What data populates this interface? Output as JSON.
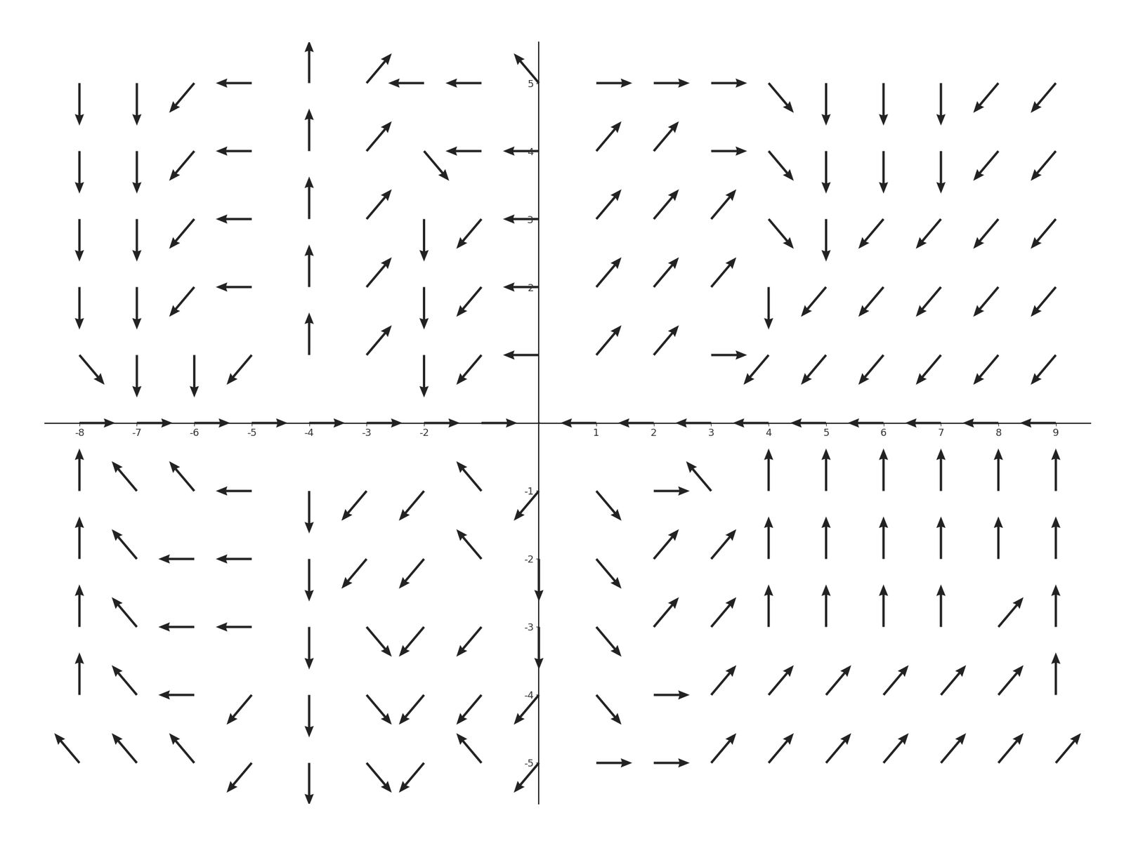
{
  "chart_data": {
    "type": "quiver",
    "color": "#222222",
    "grid": false,
    "x": [
      -8,
      -7,
      -6,
      -5,
      -4,
      -3,
      -2,
      -1,
      0,
      1,
      2,
      3,
      4,
      5,
      6,
      7,
      8,
      9
    ],
    "y": [
      5,
      4,
      3,
      2,
      1,
      0,
      -1,
      -2,
      -3,
      -4,
      -5
    ],
    "u": [
      [
        0,
        0,
        -0.7,
        -1,
        0,
        0.7,
        -1,
        -1,
        -0.7,
        1,
        1,
        1,
        0.7,
        0,
        0,
        0,
        -0.7,
        -0.7
      ],
      [
        0,
        0,
        -0.7,
        -1,
        0,
        0.7,
        0.7,
        -1,
        -1,
        0.7,
        0.7,
        1,
        0.7,
        0,
        0,
        0,
        -0.7,
        -0.7
      ],
      [
        0,
        0,
        -0.7,
        -1,
        0,
        0.7,
        0,
        -0.7,
        -1,
        0.7,
        0.7,
        0.7,
        0.7,
        0,
        -0.7,
        -0.7,
        -0.7,
        -0.7
      ],
      [
        0,
        0,
        -0.7,
        -1,
        0,
        0.7,
        0,
        -0.7,
        -1,
        0.7,
        0.7,
        0.7,
        0,
        -0.7,
        -0.7,
        -0.7,
        -0.7,
        -0.7
      ],
      [
        0.7,
        0,
        0,
        -0.7,
        0,
        0.7,
        0,
        -0.7,
        -1,
        0.7,
        0.7,
        1,
        -0.7,
        -0.7,
        -0.7,
        -0.7,
        -0.7,
        -0.7
      ],
      [
        1,
        1,
        1,
        1,
        1,
        1,
        1,
        1,
        0,
        -1,
        -1,
        -1,
        -1,
        -1,
        -1,
        -1,
        -1,
        -1
      ],
      [
        0,
        -0.7,
        -0.7,
        -1,
        0,
        -0.7,
        -0.7,
        -0.7,
        -0.7,
        0.7,
        1,
        -0.7,
        0,
        0,
        0,
        0,
        0,
        0
      ],
      [
        0,
        -0.7,
        -1,
        -1,
        0,
        -0.7,
        -0.7,
        -0.7,
        0,
        0.7,
        0.7,
        0.7,
        0,
        0,
        0,
        0,
        0,
        0
      ],
      [
        0,
        -0.7,
        -1,
        -1,
        0,
        0.7,
        -0.7,
        -0.7,
        0,
        0.7,
        0.7,
        0.7,
        0,
        0,
        0,
        0,
        0.7,
        0
      ],
      [
        0,
        -0.7,
        -1,
        -0.7,
        0,
        0.7,
        -0.7,
        -0.7,
        -0.7,
        0.7,
        1,
        0.7,
        0.7,
        0.7,
        0.7,
        0.7,
        0.7,
        0
      ],
      [
        -0.7,
        -0.7,
        -0.7,
        -0.7,
        0,
        0.7,
        -0.7,
        -0.7,
        -0.7,
        1,
        1,
        0.7,
        0.7,
        0.7,
        0.7,
        0.7,
        0.7,
        0.7
      ]
    ],
    "v": [
      [
        -1,
        -1,
        -0.7,
        0,
        1,
        0.7,
        0,
        0,
        0.7,
        0,
        0,
        0,
        -0.7,
        -1,
        -1,
        -1,
        -0.7,
        -0.7
      ],
      [
        -1,
        -1,
        -0.7,
        0,
        1,
        0.7,
        -0.7,
        0,
        0,
        0.7,
        0.7,
        0,
        -0.7,
        -1,
        -1,
        -1,
        -0.7,
        -0.7
      ],
      [
        -1,
        -1,
        -0.7,
        0,
        1,
        0.7,
        -1,
        -0.7,
        0,
        0.7,
        0.7,
        0.7,
        -0.7,
        -1,
        -0.7,
        -0.7,
        -0.7,
        -0.7
      ],
      [
        -1,
        -1,
        -0.7,
        0,
        1,
        0.7,
        -1,
        -0.7,
        0,
        0.7,
        0.7,
        0.7,
        -1,
        -0.7,
        -0.7,
        -0.7,
        -0.7,
        -0.7
      ],
      [
        -0.7,
        -1,
        -1,
        -0.7,
        1,
        0.7,
        -1,
        -0.7,
        0,
        0.7,
        0.7,
        0,
        -0.7,
        -0.7,
        -0.7,
        -0.7,
        -0.7,
        -0.7
      ],
      [
        0,
        0,
        0,
        0,
        0,
        0,
        0,
        0,
        0,
        0,
        0,
        0,
        0,
        0,
        0,
        0,
        0,
        0
      ],
      [
        1,
        0.7,
        0.7,
        0,
        -1,
        -0.7,
        -0.7,
        0.7,
        -0.7,
        -0.7,
        0,
        0.7,
        1,
        1,
        1,
        1,
        1,
        1
      ],
      [
        1,
        0.7,
        0,
        0,
        -1,
        -0.7,
        -0.7,
        0.7,
        -1,
        -0.7,
        0.7,
        0.7,
        1,
        1,
        1,
        1,
        1,
        1
      ],
      [
        1,
        0.7,
        0,
        0,
        -1,
        -0.7,
        -0.7,
        -0.7,
        -1,
        -0.7,
        0.7,
        0.7,
        1,
        1,
        1,
        1,
        0.7,
        1
      ],
      [
        1,
        0.7,
        0,
        -0.7,
        -1,
        -0.7,
        -0.7,
        -0.7,
        -0.7,
        -0.7,
        0,
        0.7,
        0.7,
        0.7,
        0.7,
        0.7,
        0.7,
        1
      ],
      [
        0.7,
        0.7,
        0.7,
        -0.7,
        -1,
        -0.7,
        -0.7,
        0.7,
        -0.7,
        0,
        0,
        0.7,
        0.7,
        0.7,
        0.7,
        0.7,
        0.7,
        0.7
      ]
    ],
    "xlim": [
      -8.6,
      9.6
    ],
    "ylim": [
      -5.6,
      5.6
    ],
    "xticks": [
      -8,
      -7,
      -6,
      -5,
      -4,
      -3,
      -2,
      1,
      2,
      3,
      4,
      5,
      6,
      7,
      8,
      9
    ],
    "yticks": [
      5,
      4,
      3,
      2,
      -1,
      -2,
      -3,
      -4,
      -5
    ]
  }
}
